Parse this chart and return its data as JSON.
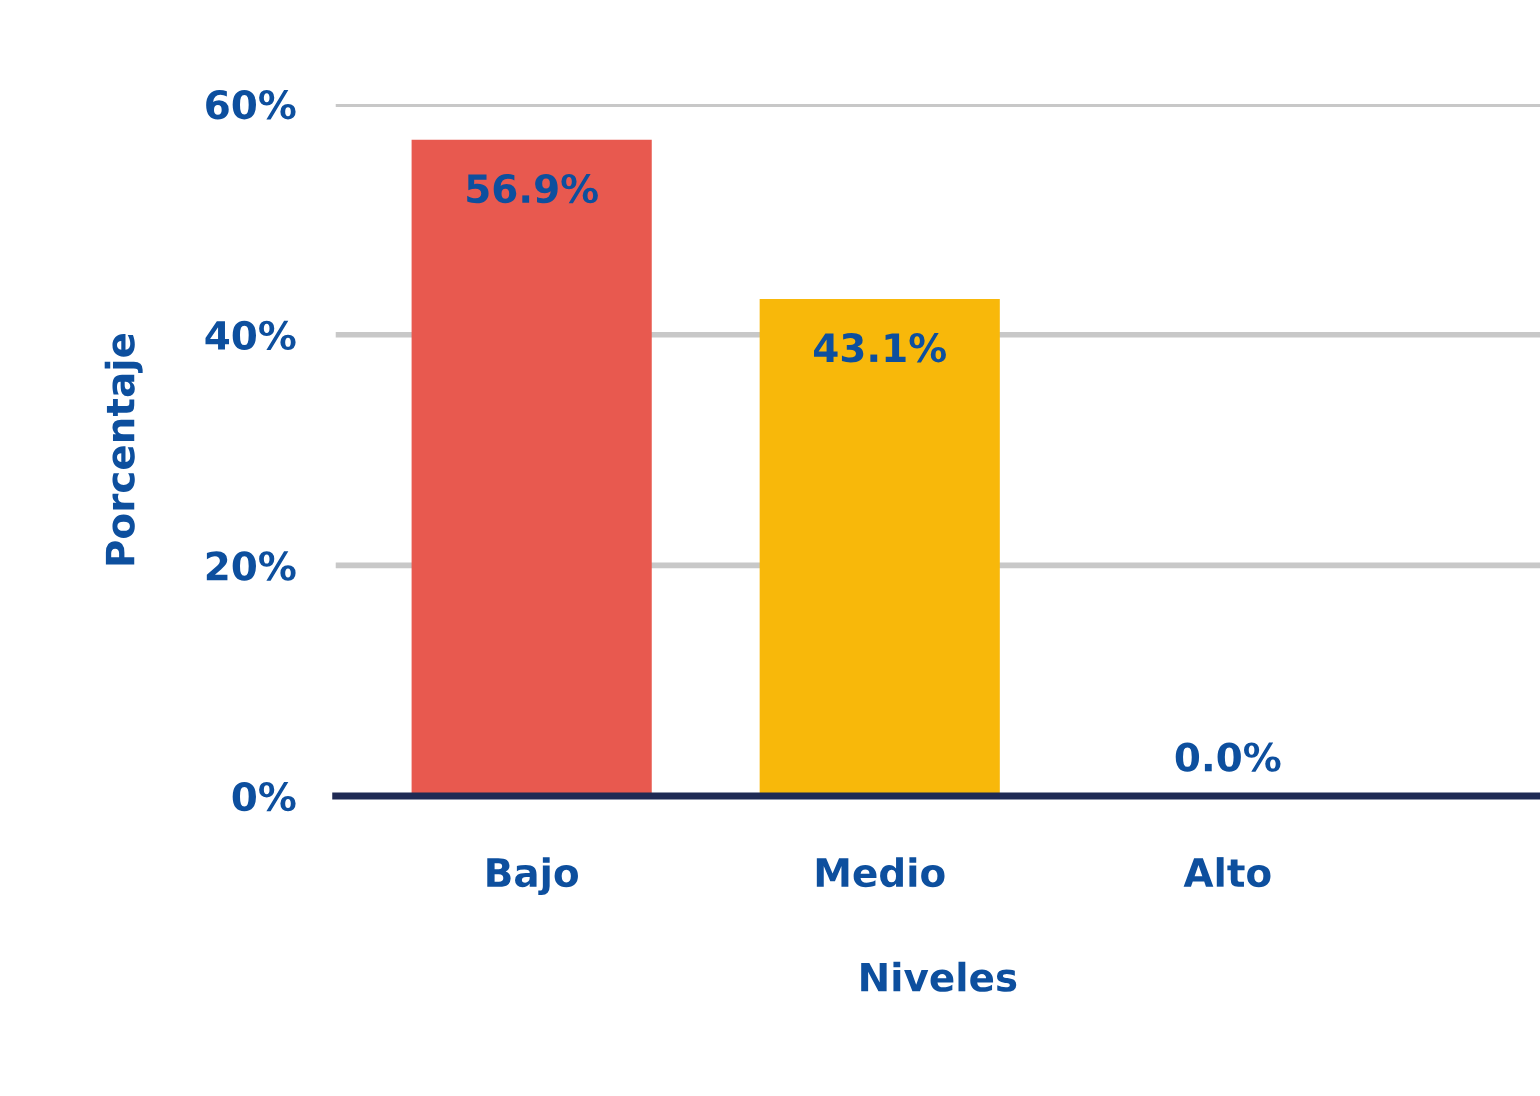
{
  "chart_data": {
    "type": "bar",
    "xlabel": "Niveles",
    "ylabel": "Porcentaje",
    "categories": [
      "Bajo",
      "Medio",
      "Alto"
    ],
    "values": [
      56.9,
      43.1,
      0.0
    ],
    "colors": [
      "#e8594f",
      "#f8b80a",
      "#f8b80a"
    ],
    "value_labels": [
      "56.9%",
      "43.1%",
      "0.0%"
    ],
    "ylim": [
      0,
      60
    ],
    "yticks": [
      {
        "value": 0,
        "label": "0%"
      },
      {
        "value": 20,
        "label": "20%"
      },
      {
        "value": 40,
        "label": "40%"
      },
      {
        "value": 60,
        "label": "60%"
      }
    ],
    "grid": "y",
    "legend": false
  }
}
